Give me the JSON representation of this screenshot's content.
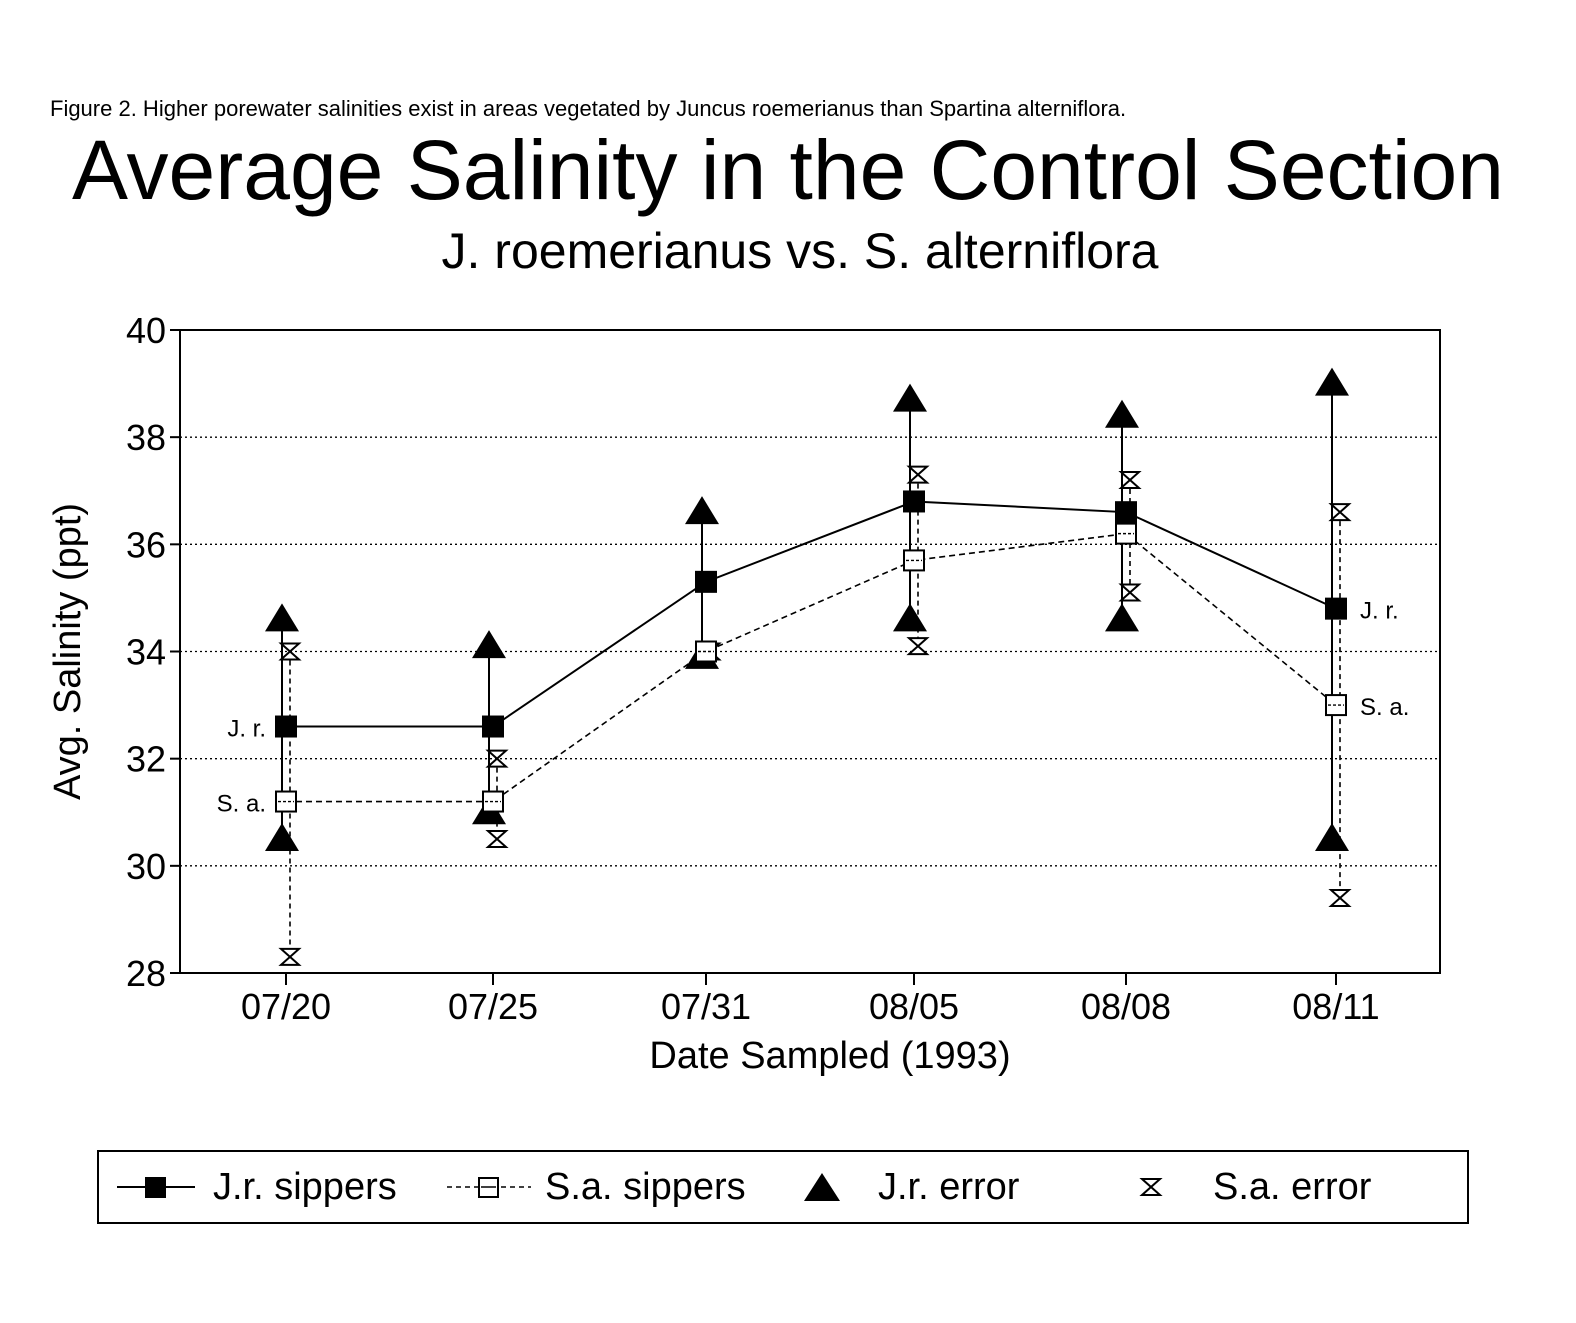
{
  "figure_caption": "Figure 2.  Higher porewater salinities exist in areas vegetated by Juncus roemerianus than Spartina alterniflora.",
  "chart_data": {
    "type": "line",
    "title": "Average Salinity in the Control Section",
    "subtitle": "J. roemerianus vs. S. alterniflora",
    "xlabel": "Date Sampled (1993)",
    "ylabel": "Avg. Salinity (ppt)",
    "categories": [
      "07/20",
      "07/25",
      "07/31",
      "08/05",
      "08/08",
      "08/11"
    ],
    "ylim": [
      28,
      40
    ],
    "yticks": [
      28,
      30,
      32,
      34,
      36,
      38,
      40
    ],
    "grid": "horizontal dotted",
    "series": [
      {
        "name": "J.r. sippers",
        "values": [
          32.6,
          32.6,
          35.3,
          36.8,
          36.6,
          34.8
        ],
        "error_high": [
          34.6,
          34.1,
          36.6,
          38.7,
          38.4,
          39.0
        ],
        "error_low": [
          30.5,
          31.0,
          33.9,
          34.6,
          34.6,
          30.5
        ]
      },
      {
        "name": "S.a. sippers",
        "values": [
          31.2,
          31.2,
          34.0,
          35.7,
          36.2,
          33.0
        ],
        "error_high": [
          34.0,
          32.0,
          34.0,
          37.3,
          37.2,
          36.6
        ],
        "error_low": [
          28.3,
          30.5,
          34.0,
          34.1,
          35.1,
          29.4
        ]
      }
    ],
    "annotations": {
      "jr_label": "J. r.",
      "sa_label": "S. a."
    },
    "legend_position": "bottom",
    "legend": [
      "J.r. sippers",
      "S.a. sippers",
      "J.r. error",
      "S.a. error"
    ]
  },
  "colors": {
    "ink": "#000000",
    "background": "#ffffff"
  }
}
